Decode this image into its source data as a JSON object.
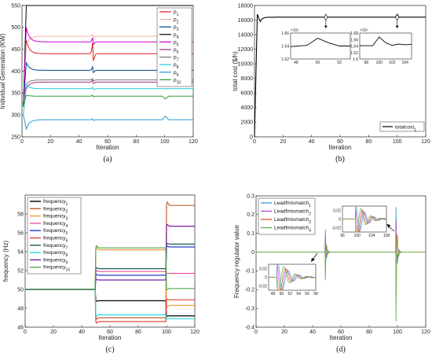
{
  "chart_data": [
    {
      "type": "line",
      "caption": "(a)",
      "xlabel": "Iteration",
      "ylabel": "Individual Generation (KW)",
      "xlim": [
        0,
        120
      ],
      "ylim": [
        250,
        550
      ],
      "xticks": [
        0,
        20,
        40,
        60,
        80,
        100,
        120
      ],
      "yticks": [
        250,
        300,
        350,
        400,
        450,
        500,
        550
      ],
      "grid": false,
      "legend_position": "top-right",
      "series": [
        {
          "name": "p1",
          "color": "#e41a1c",
          "y0": 330,
          "peak": 470,
          "value": 440,
          "bump50": 30,
          "bump100": 0
        },
        {
          "name": "p2",
          "color": "#e9b0a6",
          "y0": 320,
          "peak": 460,
          "value": 480,
          "bump50": 5,
          "bump100": 0
        },
        {
          "name": "p3",
          "color": "#00468b",
          "y0": 320,
          "peak": 420,
          "value": 402,
          "bump50": 10,
          "bump100": 0
        },
        {
          "name": "p4",
          "color": "#000000",
          "y0": 320,
          "peak": 550,
          "value": 550,
          "bump50": 0,
          "bump100": 0
        },
        {
          "name": "p5",
          "color": "#cc00cc",
          "y0": 330,
          "peak": 500,
          "value": 467,
          "bump50": 12,
          "bump100": 0
        },
        {
          "name": "p6",
          "color": "#a0307a",
          "y0": 330,
          "peak": 360,
          "value": 375,
          "bump50": 6,
          "bump100": 0
        },
        {
          "name": "p7",
          "color": "#777777",
          "y0": 330,
          "peak": 370,
          "value": 380,
          "bump50": 4,
          "bump100": 0
        },
        {
          "name": "p8",
          "color": "#1fc8d0",
          "y0": 300,
          "peak": 370,
          "value": 360,
          "bump50": 4,
          "bump100": 0
        },
        {
          "name": "p9",
          "color": "#2a9ad6",
          "y0": 300,
          "peak": 268,
          "value": 289,
          "bump50": 3,
          "bump100": 8
        },
        {
          "name": "p10",
          "color": "#2e9e2e",
          "y0": 320,
          "peak": 345,
          "value": 343,
          "bump50": 3,
          "bump100": -6
        }
      ]
    },
    {
      "type": "line",
      "caption": "(b)",
      "xlabel": "Iteration",
      "ylabel": "total cost ($/h)",
      "xlim": [
        0,
        120
      ],
      "ylim": [
        0,
        18000
      ],
      "xticks": [
        0,
        20,
        40,
        60,
        80,
        100,
        120
      ],
      "yticks": [
        0,
        2000,
        4000,
        6000,
        8000,
        10000,
        12000,
        14000,
        16000,
        18000
      ],
      "legend_position": "bottom-right",
      "series": [
        {
          "name": "totalcost1",
          "color": "#000000",
          "start": 0,
          "dip": 15800,
          "value": 16400
        }
      ],
      "insets": [
        {
          "multiplier": "×10⁴",
          "xticks": [
            48,
            50,
            52
          ],
          "yticks": [
            1.62,
            1.64,
            1.66
          ],
          "x": [
            47.5,
            49,
            50,
            51,
            52,
            53
          ],
          "y": [
            1.639,
            1.641,
            1.652,
            1.645,
            1.64,
            1.64
          ]
        },
        {
          "multiplier": "×10⁴",
          "xticks": [
            98,
            100,
            102,
            104
          ],
          "yticks": [
            1.6,
            1.62,
            1.64,
            1.66,
            1.68
          ],
          "x": [
            97,
            99,
            100,
            101,
            102,
            103,
            104,
            105
          ],
          "y": [
            1.641,
            1.641,
            1.668,
            1.65,
            1.642,
            1.646,
            1.644,
            1.645
          ]
        }
      ]
    },
    {
      "type": "line",
      "caption": "(c)",
      "xlabel": "Iteration",
      "ylabel": "frequency (Hz)",
      "xlim": [
        0,
        120
      ],
      "ylim": [
        46,
        60
      ],
      "xticks": [
        0,
        20,
        40,
        60,
        80,
        100,
        120
      ],
      "yticks": [
        46,
        48,
        50,
        52,
        54,
        56,
        58
      ],
      "legend_position": "top-left",
      "series": [
        {
          "name": "frequency1",
          "color": "#000000",
          "a": 50,
          "b": 48.8,
          "c": 47.2
        },
        {
          "name": "frequency2",
          "color": "#c0622a",
          "a": 50,
          "b": 47.0,
          "c": 58.9
        },
        {
          "name": "frequency3",
          "color": "#f0a040",
          "a": 50,
          "b": 54.2,
          "c": 48.3
        },
        {
          "name": "frequency4",
          "color": "#e8559a",
          "a": 50,
          "b": 51.9,
          "c": 51.7
        },
        {
          "name": "frequency5",
          "color": "#1f3fbf",
          "a": 50,
          "b": 51.5,
          "c": 54.5
        },
        {
          "name": "frequency6",
          "color": "#e0443a",
          "a": 50,
          "b": 46.6,
          "c": 48.9
        },
        {
          "name": "frequency7",
          "color": "#205a5a",
          "a": 50,
          "b": 52.2,
          "c": 54.8
        },
        {
          "name": "frequency8",
          "color": "#22d8e0",
          "a": 50,
          "b": 47.3,
          "c": 46.9
        },
        {
          "name": "frequency9",
          "color": "#7a1fa0",
          "a": 50,
          "b": 51.0,
          "c": 56.7
        },
        {
          "name": "frequency10",
          "color": "#4fa84f",
          "a": 50,
          "b": 54.4,
          "c": 50.1
        }
      ]
    },
    {
      "type": "line",
      "caption": "(d)",
      "xlabel": "Iteration",
      "ylabel": "Frequency regulator value",
      "xlim": [
        0,
        120
      ],
      "ylim": [
        -0.4,
        0.3
      ],
      "xticks": [
        0,
        20,
        40,
        60,
        80,
        100,
        120
      ],
      "yticks": [
        -0.4,
        -0.3,
        -0.2,
        -0.1,
        0,
        0.1,
        0.2,
        0.3
      ],
      "legend_position": "top-left",
      "series": [
        {
          "name": "Leadfmismatch1",
          "color": "#3aa0d8",
          "amp50": 0.12,
          "amp100": 0.24
        },
        {
          "name": "Leadfmismatch2",
          "color": "#b050d0",
          "amp50": 0.08,
          "amp100": 0.17
        },
        {
          "name": "Leadfmismatch3",
          "color": "#e06030",
          "amp50": -0.1,
          "amp100": 0.1
        },
        {
          "name": "Leadfmismatch4",
          "color": "#6ab04c",
          "amp50": -0.15,
          "amp100": -0.37
        }
      ],
      "insets": [
        {
          "xticks": [
            96,
            100,
            104,
            108
          ],
          "yticks": [
            -0.02,
            0,
            0.02
          ],
          "xlim": [
            96,
            108
          ]
        },
        {
          "xticks": [
            48,
            50,
            52,
            54,
            56,
            58
          ],
          "yticks": [
            -0.02,
            0,
            0.02
          ],
          "xlim": [
            47,
            58
          ]
        }
      ]
    }
  ]
}
